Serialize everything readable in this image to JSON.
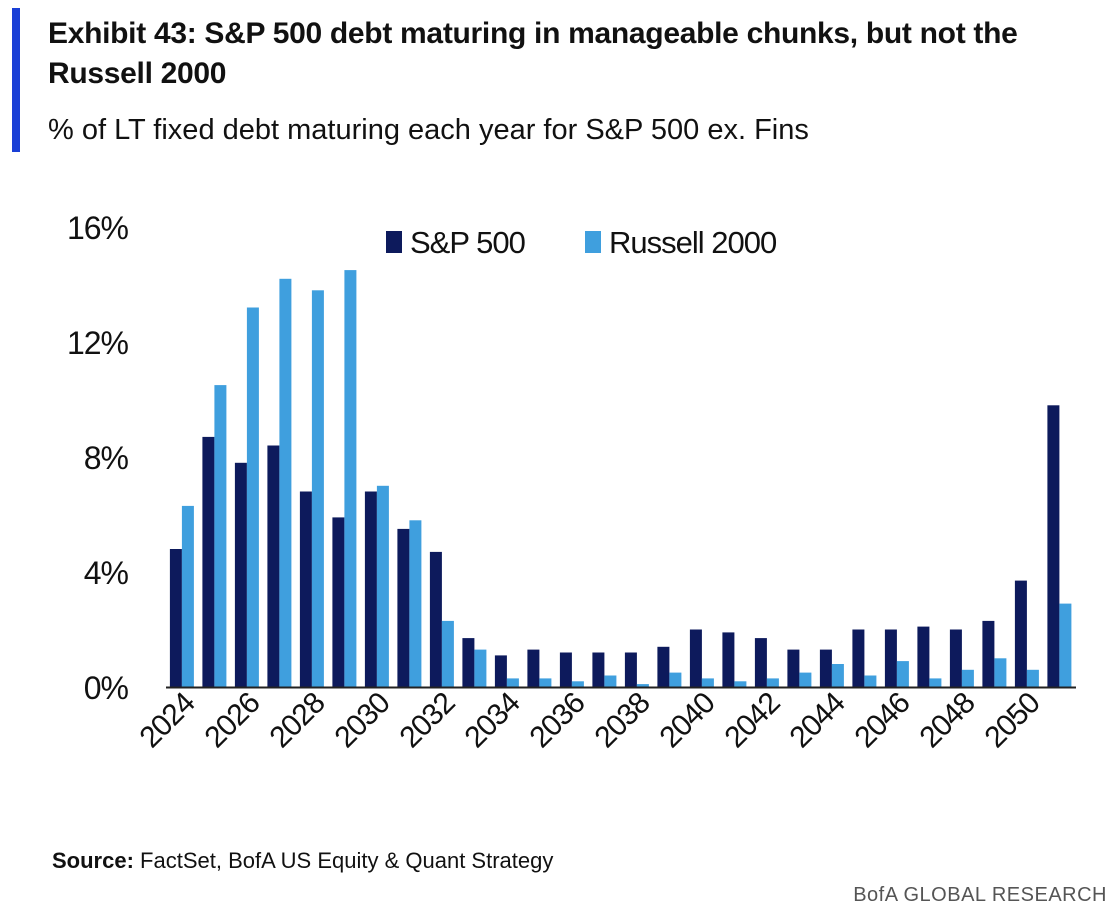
{
  "header": {
    "title": "Exhibit 43: S&P 500 debt maturing in manageable chunks, but not the Russell 2000",
    "subtitle": "% of LT fixed debt maturing each year for S&P 500 ex. Fins"
  },
  "footer": {
    "source_label": "Source:",
    "source_text": "FactSet, BofA US Equity & Quant Strategy",
    "brand": "BofA GLOBAL RESEARCH"
  },
  "colors": {
    "accent": "#1a3fd6",
    "sp500": "#0d1a5c",
    "russell": "#3f9fde"
  },
  "chart_data": {
    "type": "bar",
    "x": [
      2024,
      2025,
      2026,
      2027,
      2028,
      2029,
      2030,
      2031,
      2032,
      2033,
      2034,
      2035,
      2036,
      2037,
      2038,
      2039,
      2040,
      2041,
      2042,
      2043,
      2044,
      2045,
      2046,
      2047,
      2048,
      2049,
      2050,
      2051
    ],
    "x_tick_labels": [
      "2024",
      "2026",
      "2028",
      "2030",
      "2032",
      "2034",
      "2036",
      "2038",
      "2040",
      "2042",
      "2044",
      "2046",
      "2048",
      "2050"
    ],
    "series": [
      {
        "name": "S&P 500",
        "color": "#0d1a5c",
        "values": [
          4.8,
          8.7,
          7.8,
          8.4,
          6.8,
          5.9,
          6.8,
          5.5,
          4.7,
          1.7,
          1.1,
          1.3,
          1.2,
          1.2,
          1.2,
          1.4,
          2.0,
          1.9,
          1.7,
          1.3,
          1.3,
          2.0,
          2.0,
          2.1,
          2.0,
          2.3,
          3.7,
          9.8
        ]
      },
      {
        "name": "Russell 2000",
        "color": "#3f9fde",
        "values": [
          6.3,
          10.5,
          13.2,
          14.2,
          13.8,
          14.5,
          7.0,
          5.8,
          2.3,
          1.3,
          0.3,
          0.3,
          0.2,
          0.4,
          0.1,
          0.5,
          0.3,
          0.2,
          0.3,
          0.5,
          0.8,
          0.4,
          0.9,
          0.3,
          0.6,
          1.0,
          0.6,
          2.9
        ]
      }
    ],
    "ylim": [
      0,
      16
    ],
    "y_ticks": [
      "0%",
      "4%",
      "8%",
      "12%",
      "16%"
    ],
    "y_tick_values": [
      0,
      4,
      8,
      12,
      16
    ],
    "legend_position": "top-center",
    "grid": false
  }
}
